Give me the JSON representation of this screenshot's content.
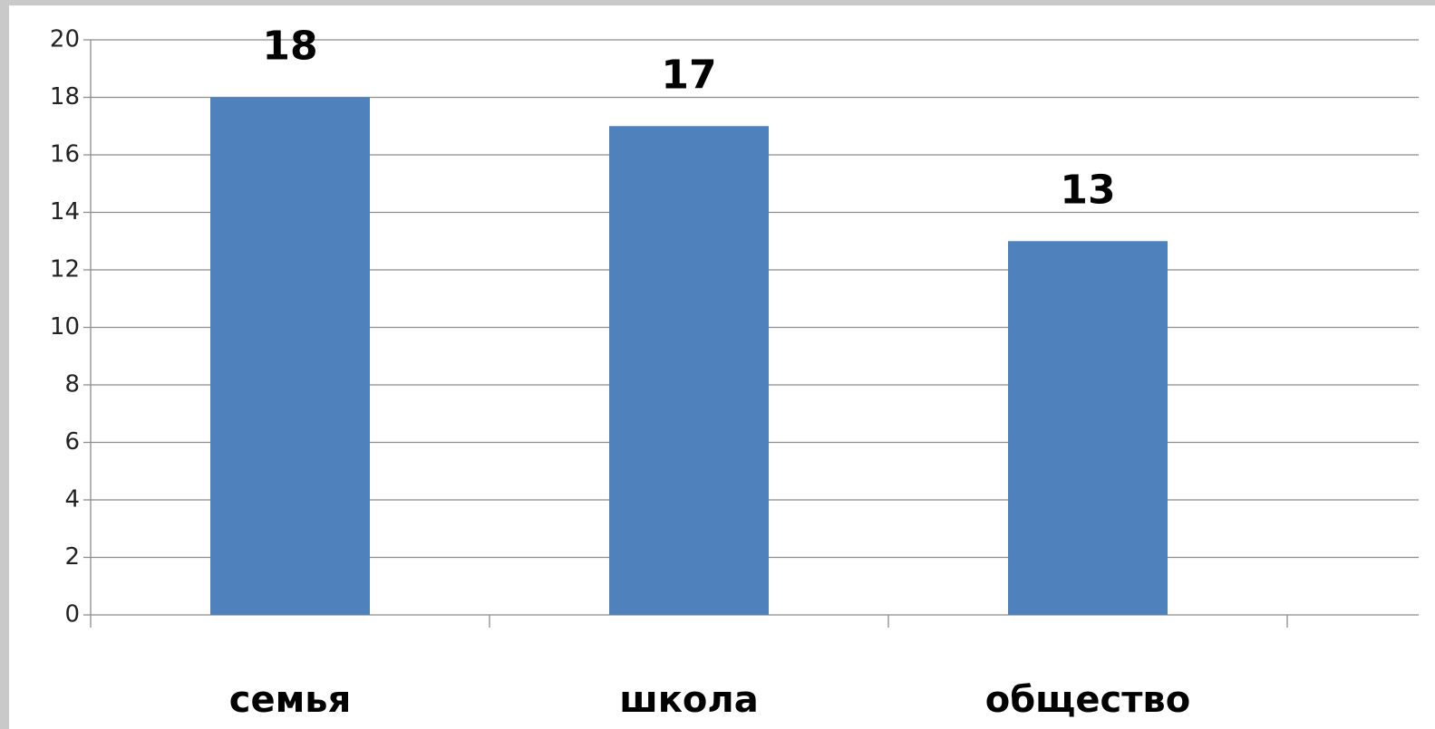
{
  "chart_data": {
    "type": "bar",
    "categories": [
      "семья",
      "школа",
      "общество"
    ],
    "values": [
      18,
      17,
      13
    ],
    "color": "#4f81bd",
    "ylim": [
      0,
      20
    ],
    "yticks": [
      0,
      2,
      4,
      6,
      8,
      10,
      12,
      14,
      16,
      18,
      20
    ],
    "grid": true
  }
}
